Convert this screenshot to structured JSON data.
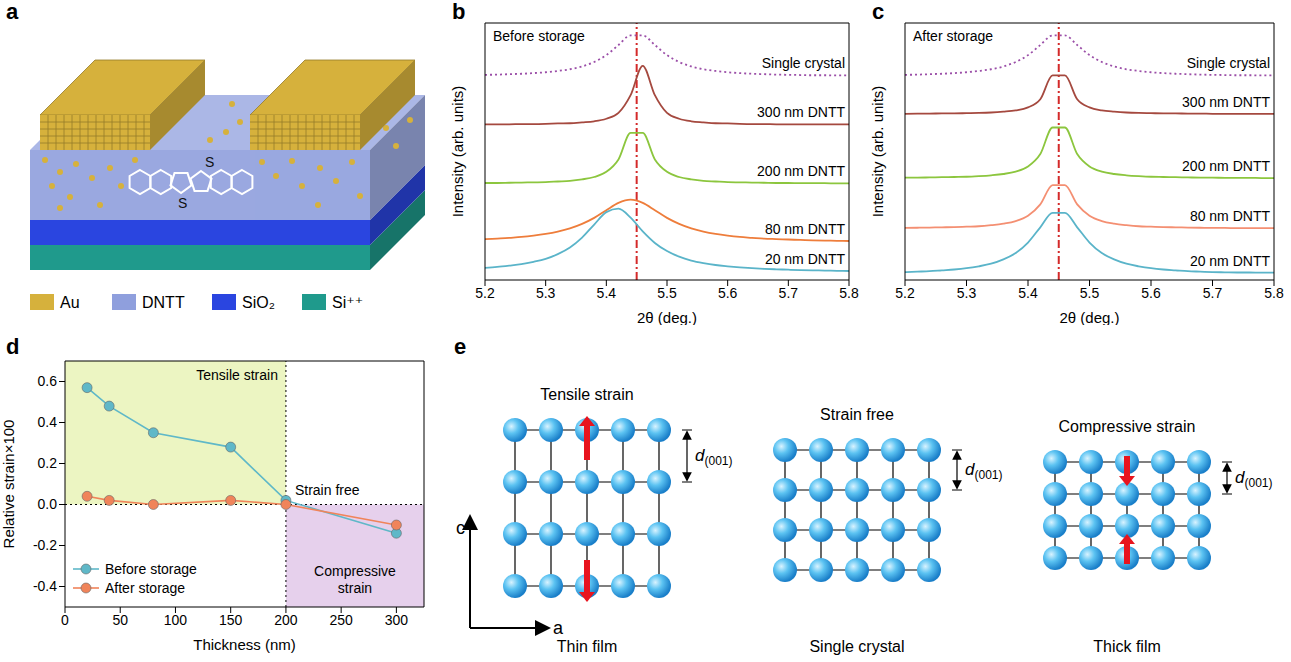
{
  "schematic": {
    "panel": "a",
    "legend": [
      {
        "label": "Au",
        "color": "#d6b13c"
      },
      {
        "label": "DNTT",
        "color": "#8f9fdd"
      },
      {
        "label": "SiO₂",
        "color": "#2a45e0"
      },
      {
        "label": "Si⁺⁺",
        "color": "#1f9a8c"
      }
    ],
    "molecule_labels": [
      "S",
      "S"
    ]
  },
  "chart_data": [
    {
      "panel": "b",
      "type": "line",
      "annotation": "Before storage",
      "xlabel": "2θ (deg.)",
      "ylabel": "Intensity (arb. units)",
      "tick_labels": "x",
      "xlim": [
        5.2,
        5.8
      ],
      "xticks": [
        5.2,
        5.3,
        5.4,
        5.5,
        5.6,
        5.7,
        5.8
      ],
      "ylim": [
        0,
        12
      ],
      "vline": 5.45,
      "x": [
        5.2,
        5.22,
        5.24,
        5.26,
        5.28,
        5.3,
        5.32,
        5.34,
        5.36,
        5.38,
        5.4,
        5.42,
        5.44,
        5.46,
        5.48,
        5.5,
        5.52,
        5.54,
        5.56,
        5.58,
        5.6,
        5.62,
        5.64,
        5.66,
        5.68,
        5.7,
        5.72,
        5.74,
        5.76,
        5.78,
        5.8
      ],
      "series": [
        {
          "name": "Single crystal",
          "color": "#9b4fa8",
          "line_style": "dotted",
          "values": [
            9.58,
            9.59,
            9.61,
            9.63,
            9.66,
            9.7,
            9.76,
            9.84,
            9.97,
            10.18,
            10.5,
            10.97,
            11.42,
            11.42,
            10.97,
            10.5,
            10.18,
            9.97,
            9.84,
            9.76,
            9.7,
            9.66,
            9.63,
            9.61,
            9.59,
            9.58,
            9.57,
            9.56,
            9.56,
            9.55,
            9.55
          ]
        },
        {
          "name": "300 nm DNTT",
          "color": "#a5493f",
          "line_style": "solid",
          "values": [
            7.27,
            7.27,
            7.27,
            7.28,
            7.28,
            7.29,
            7.31,
            7.32,
            7.36,
            7.41,
            7.53,
            7.8,
            8.63,
            10.0,
            8.63,
            7.8,
            7.53,
            7.41,
            7.36,
            7.32,
            7.31,
            7.29,
            7.28,
            7.28,
            7.27,
            7.27,
            7.27,
            7.27,
            7.27,
            7.27,
            7.27
          ]
        },
        {
          "name": "200 nm DNTT",
          "color": "#8cc63e",
          "line_style": "solid",
          "values": [
            4.53,
            4.53,
            4.54,
            4.55,
            4.56,
            4.57,
            4.6,
            4.63,
            4.7,
            4.81,
            5.05,
            5.63,
            6.87,
            6.87,
            5.63,
            5.05,
            4.81,
            4.7,
            4.63,
            4.6,
            4.57,
            4.56,
            4.55,
            4.54,
            4.53,
            4.53,
            4.52,
            4.52,
            4.52,
            4.51,
            4.51
          ]
        },
        {
          "name": "80 nm DNTT",
          "color": "#ee7d3b",
          "line_style": "solid",
          "values": [
            1.91,
            1.93,
            1.97,
            2.01,
            2.07,
            2.15,
            2.26,
            2.41,
            2.62,
            2.9,
            3.26,
            3.6,
            3.75,
            3.6,
            3.26,
            2.9,
            2.62,
            2.41,
            2.26,
            2.15,
            2.07,
            2.01,
            1.97,
            1.93,
            1.91,
            1.89,
            1.87,
            1.85,
            1.84,
            1.83,
            1.82
          ]
        },
        {
          "name": "20 nm DNTT",
          "color": "#5ab4c9",
          "line_style": "solid",
          "values": [
            0.57,
            0.61,
            0.67,
            0.74,
            0.85,
            0.99,
            1.21,
            1.52,
            1.98,
            2.59,
            3.17,
            3.33,
            2.91,
            2.27,
            1.73,
            1.35,
            1.09,
            0.91,
            0.79,
            0.7,
            0.64,
            0.59,
            0.55,
            0.52,
            0.5,
            0.48,
            0.46,
            0.45,
            0.44,
            0.43,
            0.42
          ]
        }
      ]
    },
    {
      "panel": "c",
      "type": "line",
      "annotation": "After storage",
      "xlabel": "2θ (deg.)",
      "ylabel": "Intensity (arb. units)",
      "tick_labels": "x",
      "xlim": [
        5.2,
        5.8
      ],
      "xticks": [
        5.2,
        5.3,
        5.4,
        5.5,
        5.6,
        5.7,
        5.8
      ],
      "ylim": [
        0,
        12
      ],
      "vline": 5.45,
      "x": [
        5.2,
        5.22,
        5.24,
        5.26,
        5.28,
        5.3,
        5.32,
        5.34,
        5.36,
        5.38,
        5.4,
        5.42,
        5.44,
        5.46,
        5.48,
        5.5,
        5.52,
        5.54,
        5.56,
        5.58,
        5.6,
        5.62,
        5.64,
        5.66,
        5.68,
        5.7,
        5.72,
        5.74,
        5.76,
        5.78,
        5.8
      ],
      "series": [
        {
          "name": "Single crystal",
          "color": "#9b4fa8",
          "line_style": "dotted",
          "values": [
            9.58,
            9.59,
            9.61,
            9.63,
            9.66,
            9.7,
            9.76,
            9.84,
            9.97,
            10.18,
            10.5,
            10.97,
            11.42,
            11.42,
            10.97,
            10.5,
            10.18,
            9.97,
            9.84,
            9.76,
            9.7,
            9.66,
            9.63,
            9.61,
            9.59,
            9.58,
            9.57,
            9.56,
            9.56,
            9.55,
            9.55
          ]
        },
        {
          "name": "300 nm DNTT",
          "color": "#a5493f",
          "line_style": "solid",
          "values": [
            7.76,
            7.77,
            7.77,
            7.78,
            7.78,
            7.79,
            7.8,
            7.82,
            7.86,
            7.92,
            8.06,
            8.44,
            9.55,
            9.55,
            8.44,
            8.06,
            7.92,
            7.86,
            7.82,
            7.8,
            7.79,
            7.78,
            7.78,
            7.77,
            7.77,
            7.76,
            7.76,
            7.76,
            7.76,
            7.76,
            7.76
          ]
        },
        {
          "name": "200 nm DNTT",
          "color": "#8cc63e",
          "line_style": "solid",
          "values": [
            4.78,
            4.78,
            4.79,
            4.8,
            4.81,
            4.82,
            4.85,
            4.89,
            4.95,
            5.06,
            5.3,
            5.88,
            7.12,
            7.12,
            5.88,
            5.3,
            5.06,
            4.95,
            4.89,
            4.85,
            4.82,
            4.81,
            4.8,
            4.79,
            4.78,
            4.78,
            4.77,
            4.77,
            4.77,
            4.76,
            4.76
          ]
        },
        {
          "name": "80 nm DNTT",
          "color": "#f48f72",
          "line_style": "solid",
          "values": [
            2.43,
            2.44,
            2.45,
            2.46,
            2.47,
            2.49,
            2.51,
            2.56,
            2.63,
            2.75,
            3.0,
            3.53,
            4.43,
            4.43,
            3.53,
            3.0,
            2.75,
            2.63,
            2.56,
            2.51,
            2.49,
            2.47,
            2.46,
            2.45,
            2.44,
            2.43,
            2.43,
            2.42,
            2.42,
            2.42,
            2.42
          ]
        },
        {
          "name": "20 nm DNTT",
          "color": "#5ab4c9",
          "line_style": "solid",
          "values": [
            0.37,
            0.39,
            0.41,
            0.45,
            0.49,
            0.55,
            0.64,
            0.76,
            0.96,
            1.26,
            1.75,
            2.46,
            3.13,
            3.13,
            2.46,
            1.75,
            1.26,
            0.96,
            0.76,
            0.64,
            0.55,
            0.49,
            0.45,
            0.41,
            0.39,
            0.37,
            0.36,
            0.35,
            0.35,
            0.34,
            0.34
          ]
        }
      ]
    },
    {
      "panel": "d",
      "type": "line",
      "xlabel": "Thickness (nm)",
      "ylabel": "Relative strain×100",
      "legend": "lower left",
      "xlim": [
        0,
        325
      ],
      "xticks": [
        0,
        50,
        100,
        150,
        200,
        250,
        300
      ],
      "ylim": [
        -0.5,
        0.7
      ],
      "yticks": [
        -0.4,
        -0.2,
        {
          "value": 0,
          "label": "0.0"
        },
        0.2,
        0.4,
        0.6
      ],
      "vline": 200,
      "hline": 0,
      "annotation": "Strain free",
      "regions": [
        {
          "label": "Tensile strain",
          "x": [
            0,
            200
          ],
          "y": [
            0,
            0.7
          ],
          "color": "#ecf5c2"
        },
        {
          "label": "Compressive strain",
          "x": [
            200,
            325
          ],
          "y": [
            -0.5,
            0
          ],
          "color": "#e6d0ec"
        }
      ],
      "x": [
        20,
        40,
        80,
        150,
        200,
        300
      ],
      "series": [
        {
          "name": "Before storage",
          "color": "#5fb8c8",
          "marker": "circle",
          "values": [
            0.57,
            0.48,
            0.35,
            0.28,
            0.02,
            -0.14
          ]
        },
        {
          "name": "After storage",
          "color": "#f0845a",
          "marker": "circle",
          "values": [
            0.04,
            0.02,
            0.0,
            0.02,
            0.0,
            -0.1
          ]
        }
      ]
    }
  ],
  "diagram": {
    "panel": "e",
    "lattices": [
      {
        "title": "Tensile strain",
        "caption": "Thin film"
      },
      {
        "title": "Strain free",
        "caption": "Single crystal"
      },
      {
        "title": "Compressive strain",
        "caption": "Thick film"
      }
    ],
    "spacing_label": {
      "symbol": "d",
      "subscript": "(001)"
    },
    "axes": {
      "vertical": "c",
      "horizontal": "a"
    }
  }
}
